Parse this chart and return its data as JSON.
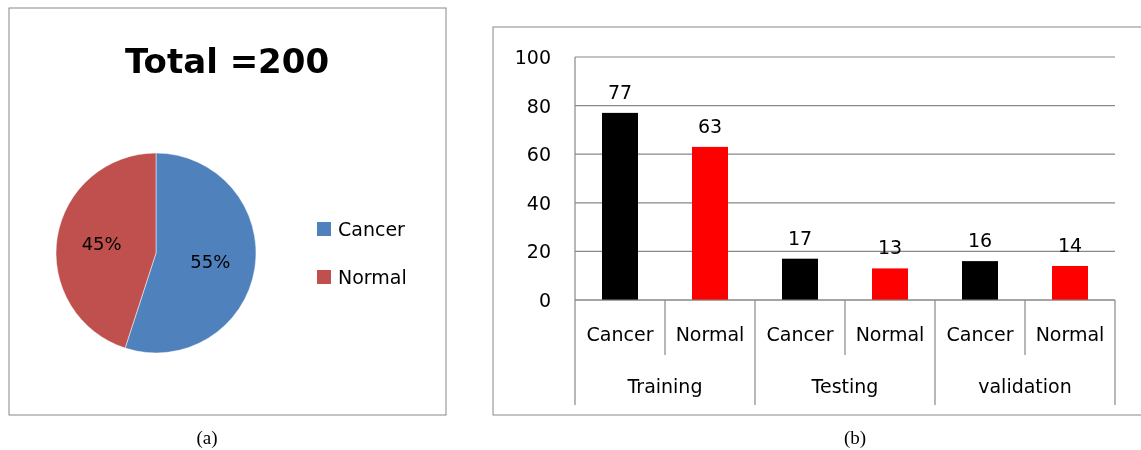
{
  "chart_data": [
    {
      "type": "pie",
      "title": "Total =200",
      "categories": [
        "Cancer",
        "Normal"
      ],
      "values": [
        55,
        45
      ],
      "value_labels": [
        "55%",
        "45%"
      ],
      "colors": [
        "#4f81bd",
        "#c0504d"
      ],
      "legend": "right",
      "annotations": [
        "(a)"
      ]
    },
    {
      "type": "bar",
      "categories": [
        "Cancer",
        "Normal",
        "Cancer",
        "Normal",
        "Cancer",
        "Normal"
      ],
      "values": [
        77,
        63,
        17,
        13,
        16,
        14
      ],
      "colors": [
        "#000000",
        "#ff0000",
        "#000000",
        "#ff0000",
        "#000000",
        "#ff0000"
      ],
      "ylim": [
        0,
        100
      ],
      "yticks": [
        0,
        20,
        40,
        60,
        80,
        100
      ],
      "grid": "y",
      "data_labels": true,
      "annotations": [
        "Training",
        "Testing",
        "validation",
        "(b)"
      ]
    }
  ]
}
